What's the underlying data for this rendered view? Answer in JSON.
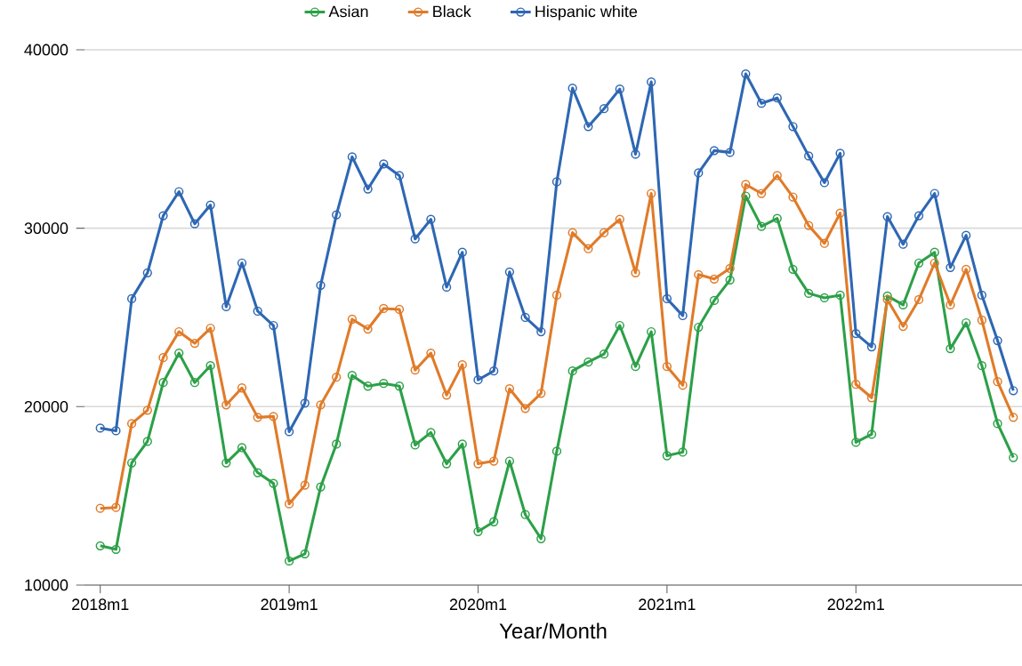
{
  "chart_data": {
    "type": "line",
    "xlabel": "Year/Month",
    "categories": [
      "2018m1",
      null,
      null,
      null,
      null,
      null,
      null,
      null,
      null,
      null,
      null,
      null,
      "2019m1",
      null,
      null,
      null,
      null,
      null,
      null,
      null,
      null,
      null,
      null,
      null,
      "2020m1",
      null,
      null,
      null,
      null,
      null,
      null,
      null,
      null,
      null,
      null,
      null,
      "2021m1",
      null,
      null,
      null,
      null,
      null,
      null,
      null,
      null,
      null,
      null,
      null,
      "2022m1",
      null,
      null,
      null,
      null,
      null,
      null,
      null,
      null,
      null,
      null
    ],
    "series": [
      {
        "name": "Asian",
        "color": "#2ca048",
        "values": [
          12200,
          12000,
          16850,
          18050,
          21350,
          23000,
          21350,
          22300,
          16850,
          17700,
          16300,
          15700,
          11350,
          11750,
          15500,
          17900,
          21750,
          21150,
          21300,
          21150,
          17850,
          18550,
          16800,
          17900,
          13000,
          13550,
          16950,
          13950,
          12600,
          17500,
          22000,
          22500,
          22950,
          24550,
          22250,
          24200,
          17250,
          17450,
          24450,
          25950,
          27100,
          31800,
          30100,
          30550,
          27700,
          26350,
          26100,
          26250,
          18000,
          18450,
          26200,
          25700,
          28050,
          28650,
          23250,
          24700,
          22300,
          19050,
          17150
        ]
      },
      {
        "name": "Black",
        "color": "#e07b29",
        "values": [
          14300,
          14350,
          19050,
          19800,
          22750,
          24200,
          23550,
          24400,
          20100,
          21050,
          19400,
          19450,
          14550,
          15600,
          20100,
          21650,
          24900,
          24350,
          25500,
          25450,
          22050,
          23000,
          20650,
          22350,
          16800,
          16950,
          21000,
          19900,
          20750,
          26250,
          29750,
          28850,
          29750,
          30500,
          27500,
          31950,
          22250,
          21200,
          27400,
          27150,
          27750,
          32450,
          31950,
          32950,
          31750,
          30150,
          29150,
          30850,
          21250,
          20500,
          26000,
          24500,
          26000,
          28050,
          25700,
          27700,
          24850,
          21400,
          19400
        ]
      },
      {
        "name": "Hispanic white",
        "color": "#2e67b3",
        "values": [
          18800,
          18650,
          26050,
          27500,
          30700,
          32050,
          30250,
          31300,
          25600,
          28050,
          25350,
          24550,
          18600,
          20200,
          26800,
          30750,
          34000,
          32200,
          33600,
          32950,
          29400,
          30500,
          26700,
          28650,
          21500,
          22000,
          27550,
          25000,
          24200,
          32600,
          37850,
          35700,
          36700,
          37800,
          34150,
          38200,
          26050,
          25100,
          33100,
          34350,
          34250,
          38650,
          37000,
          37300,
          35700,
          34050,
          32550,
          34200,
          24100,
          23350,
          30650,
          29100,
          30700,
          31950,
          27800,
          29600,
          26250,
          23700,
          20900
        ]
      }
    ],
    "ylim": [
      10000,
      40000
    ],
    "yticks": [
      10000,
      20000,
      30000,
      40000
    ],
    "grid": "y",
    "legend": "top",
    "marker": "circle",
    "line_style": "solid"
  }
}
